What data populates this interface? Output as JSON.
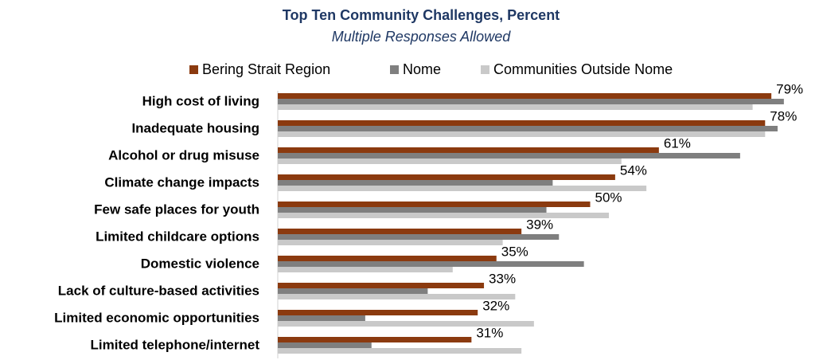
{
  "chart_data": {
    "type": "bar",
    "orientation": "horizontal",
    "title": "Top Ten Community Challenges, Percent",
    "subtitle": "Multiple Responses Allowed",
    "categories": [
      "High cost of living",
      "Inadequate housing",
      "Alcohol or drug misuse",
      "Climate change impacts",
      "Few safe places for youth",
      "Limited childcare options",
      "Domestic violence",
      "Lack of culture-based activities",
      "Limited economic opportunities",
      "Limited telephone/internet"
    ],
    "series": [
      {
        "name": "Bering Strait Region",
        "color": "#8b3a0f",
        "values": [
          79,
          78,
          61,
          54,
          50,
          39,
          35,
          33,
          32,
          31
        ],
        "value_labels": [
          "79%",
          "78%",
          "61%",
          "54%",
          "50%",
          "39%",
          "35%",
          "33%",
          "32%",
          "31%"
        ]
      },
      {
        "name": "Nome",
        "color": "#7f7f7f",
        "values": [
          81,
          80,
          74,
          44,
          43,
          45,
          49,
          24,
          14,
          15
        ]
      },
      {
        "name": "Communities Outside Nome",
        "color": "#c9c9c9",
        "values": [
          76,
          78,
          55,
          59,
          53,
          36,
          28,
          38,
          41,
          39
        ]
      }
    ],
    "xlim": [
      0,
      85
    ],
    "legend": "top"
  }
}
